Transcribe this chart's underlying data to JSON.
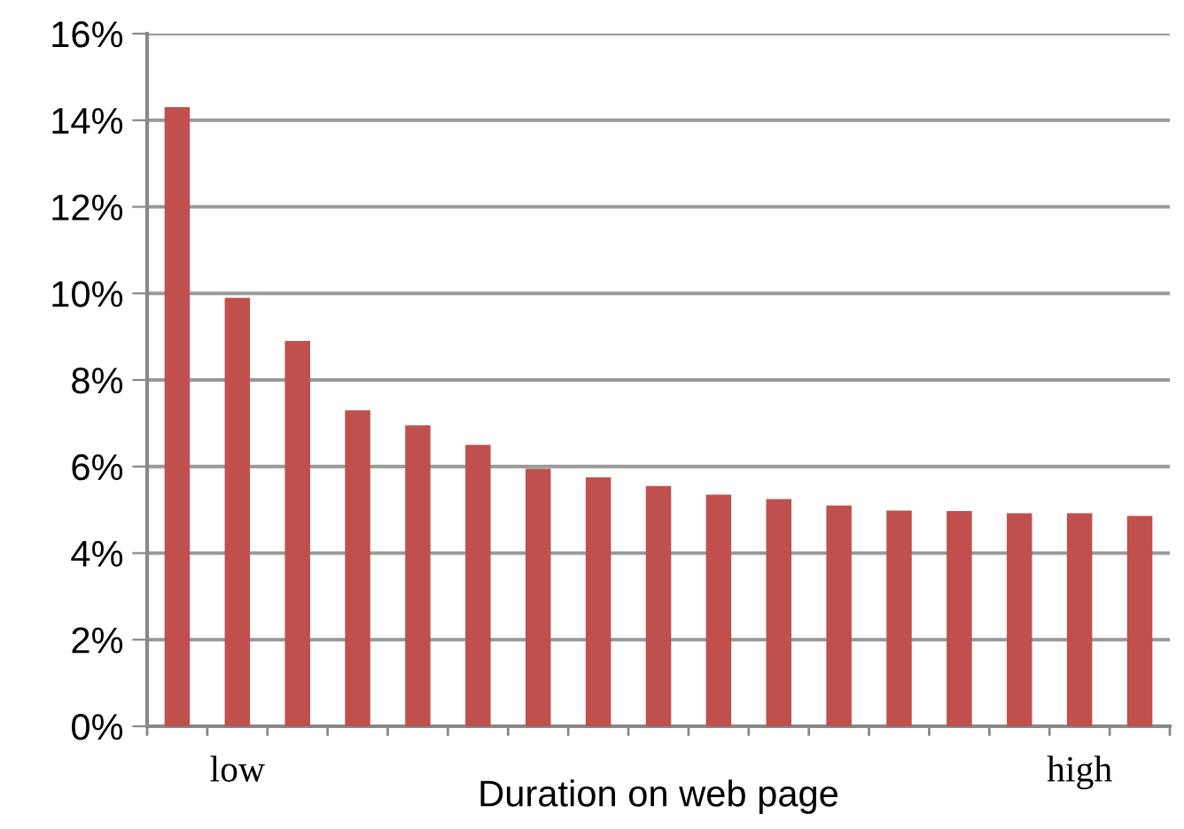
{
  "chart_data": {
    "type": "bar",
    "xlabel": "Duration on web page",
    "categories": [
      null,
      "low",
      null,
      null,
      null,
      null,
      null,
      null,
      null,
      null,
      null,
      null,
      null,
      null,
      null,
      "high",
      null
    ],
    "values": [
      14.3,
      9.9,
      8.9,
      7.3,
      6.95,
      6.5,
      5.95,
      5.75,
      5.55,
      5.35,
      5.25,
      5.1,
      4.98,
      4.97,
      4.92,
      4.92,
      4.86
    ],
    "color": "#c0504d",
    "ylim": [
      0,
      16
    ],
    "yticks": [
      {
        "value": 0,
        "label": "0%"
      },
      {
        "value": 2,
        "label": "2%"
      },
      {
        "value": 4,
        "label": "4%"
      },
      {
        "value": 6,
        "label": "6%"
      },
      {
        "value": 8,
        "label": "8%"
      },
      {
        "value": 10,
        "label": "10%"
      },
      {
        "value": 12,
        "label": "12%"
      },
      {
        "value": 14,
        "label": "14%"
      },
      {
        "value": 16,
        "label": "16%"
      }
    ],
    "grid": "y",
    "legend": false
  }
}
